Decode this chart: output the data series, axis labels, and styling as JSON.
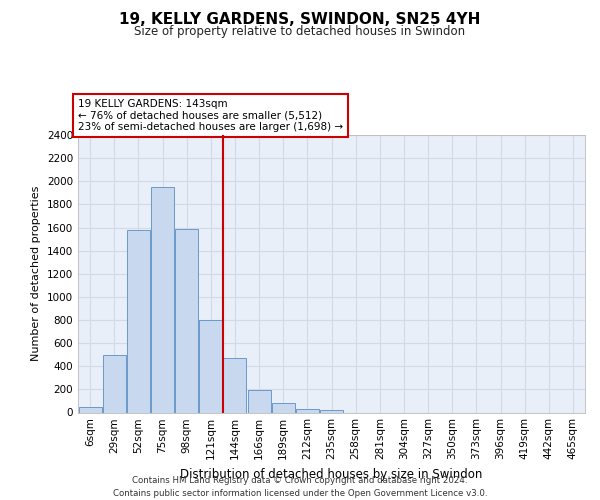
{
  "title": "19, KELLY GARDENS, SWINDON, SN25 4YH",
  "subtitle": "Size of property relative to detached houses in Swindon",
  "xlabel": "Distribution of detached houses by size in Swindon",
  "ylabel": "Number of detached properties",
  "footer_line1": "Contains HM Land Registry data © Crown copyright and database right 2024.",
  "footer_line2": "Contains public sector information licensed under the Open Government Licence v3.0.",
  "annotation_line1": "19 KELLY GARDENS: 143sqm",
  "annotation_line2": "← 76% of detached houses are smaller (5,512)",
  "annotation_line3": "23% of semi-detached houses are larger (1,698) →",
  "bar_color": "#c8d8ee",
  "bar_edge_color": "#5b8ec4",
  "reference_line_color": "#cc0000",
  "categories": [
    "6sqm",
    "29sqm",
    "52sqm",
    "75sqm",
    "98sqm",
    "121sqm",
    "144sqm",
    "166sqm",
    "189sqm",
    "212sqm",
    "235sqm",
    "258sqm",
    "281sqm",
    "304sqm",
    "327sqm",
    "350sqm",
    "373sqm",
    "396sqm",
    "419sqm",
    "442sqm",
    "465sqm"
  ],
  "values": [
    50,
    500,
    1580,
    1950,
    1590,
    800,
    475,
    195,
    85,
    30,
    25,
    0,
    0,
    0,
    0,
    0,
    0,
    0,
    0,
    0,
    0
  ],
  "ylim": [
    0,
    2400
  ],
  "yticks": [
    0,
    200,
    400,
    600,
    800,
    1000,
    1200,
    1400,
    1600,
    1800,
    2000,
    2200,
    2400
  ],
  "ref_line_x": 5.5,
  "bg_color": "#e8eff8",
  "grid_color": "#d0dae8"
}
